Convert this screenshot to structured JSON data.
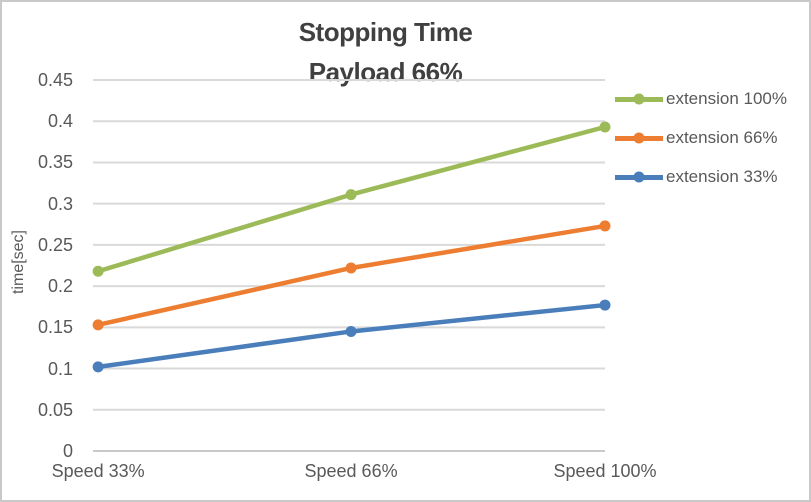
{
  "chart_data": {
    "type": "line",
    "title": "Stopping Time",
    "subtitle": "Payload 66%",
    "ylabel": "time[sec]",
    "xlabel": "",
    "categories": [
      "Speed 33%",
      "Speed 66%",
      "Speed 100%"
    ],
    "series": [
      {
        "name": "extension 100%",
        "color": "#9CBB58",
        "values": [
          0.218,
          0.311,
          0.393
        ]
      },
      {
        "name": "extension 66%",
        "color": "#ED7D31",
        "values": [
          0.153,
          0.222,
          0.273
        ]
      },
      {
        "name": "extension 33%",
        "color": "#4A7EBB",
        "values": [
          0.102,
          0.145,
          0.177
        ]
      }
    ],
    "ylim": [
      0,
      0.45
    ],
    "yticks": [
      0,
      0.05,
      0.1,
      0.15,
      0.2,
      0.25,
      0.3,
      0.35,
      0.4,
      0.45
    ],
    "grid": true,
    "legend_position": "right",
    "marker": "circle",
    "colors": {
      "grid": "#D9D9D9",
      "axis": "#C9C9C9",
      "tick_text": "#595959",
      "title_text": "#404040"
    }
  }
}
